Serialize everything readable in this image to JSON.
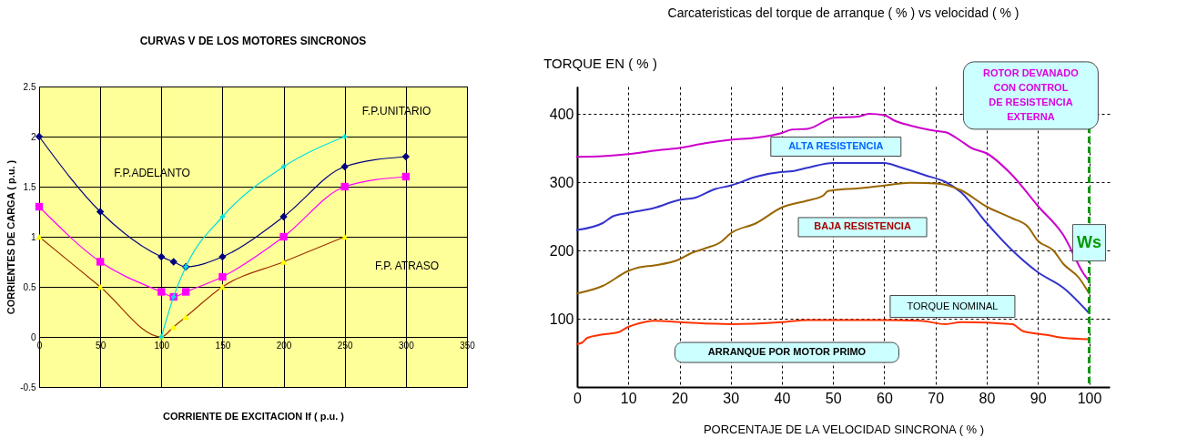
{
  "chart_data": [
    {
      "type": "line",
      "title": "CURVAS V DE LOS MOTORES SINCRONOS",
      "xlabel": "CORRIENTE  DE EXCITACION   If  (  p.u.  )",
      "ylabel": "CORRIENTES  DE CARGA   (  p.u.  )",
      "x": [
        0,
        50,
        100,
        110,
        120,
        150,
        200,
        250,
        300
      ],
      "series": [
        {
          "color": "#000080",
          "marker": "diamond",
          "values": [
            2,
            1.25,
            0.8,
            0.75,
            0.7,
            0.8,
            1.2,
            1.7,
            1.8
          ]
        },
        {
          "color": "#ff00ff",
          "marker": "square",
          "values": [
            1.3,
            0.75,
            0.45,
            0.4,
            0.45,
            0.6,
            1.0,
            1.5,
            1.6
          ]
        },
        {
          "color": "#993300",
          "marker": "none",
          "x": [
            0,
            50,
            100,
            110,
            120,
            150,
            200,
            250
          ],
          "values": [
            1,
            0.5,
            0,
            0.1,
            0.2,
            0.5,
            0.75,
            1.0
          ]
        },
        {
          "type": "scatter",
          "color": "#ffff00",
          "marker": "triangle",
          "x": [
            0,
            50,
            100,
            110,
            120,
            150,
            200,
            250
          ],
          "values": [
            1,
            0.5,
            0,
            0.1,
            0.2,
            0.5,
            0.75,
            1.0
          ]
        },
        {
          "color": "#00e0e0",
          "marker": "cross",
          "x": [
            100,
            110,
            120,
            150,
            200,
            250
          ],
          "values": [
            0,
            0.4,
            0.7,
            1.2,
            1.7,
            2.0
          ]
        }
      ],
      "xlim": [
        0,
        350
      ],
      "xticks": [
        0,
        50,
        100,
        150,
        200,
        250,
        300,
        350
      ],
      "ylim": [
        -0.5,
        2.5
      ],
      "yticks": [
        -0.5,
        0,
        0.5,
        1,
        1.5,
        2,
        2.5
      ],
      "grid": true,
      "annotations": [
        "F.P.ADELANTO",
        "F.P.UNITARIO",
        "F.P. ATRASO"
      ]
    },
    {
      "type": "line",
      "title": "Carcateristicas  del torque de arranque ( % )  vs  velocidad ( % )",
      "xlabel": "PORCENTAJE  DE  LA  VELOCIDAD  SINCRONA  ( % )",
      "ylabel": "TORQUE  EN  ( % )",
      "series": [
        {
          "color": "#cc00cc",
          "x": [
            0,
            5,
            10,
            15,
            20,
            25,
            30,
            35,
            40,
            42,
            45,
            50,
            55,
            57,
            60,
            62,
            65,
            70,
            72,
            75,
            77,
            80,
            85,
            90,
            95,
            99,
            100
          ],
          "values": [
            337,
            338,
            341,
            346,
            350,
            357,
            362,
            365,
            372,
            377,
            378,
            394,
            396,
            400,
            398,
            390,
            383,
            375,
            373,
            360,
            350,
            342,
            310,
            265,
            222,
            165,
            155
          ]
        },
        {
          "color": "#3333cc",
          "x": [
            0,
            5,
            7,
            10,
            15,
            20,
            23,
            27,
            30,
            35,
            40,
            42,
            45,
            50,
            55,
            60,
            63,
            68,
            72,
            75,
            80,
            85,
            90,
            95,
            100
          ],
          "values": [
            230,
            240,
            250,
            255,
            262,
            274,
            277,
            290,
            295,
            308,
            315,
            316,
            321,
            328,
            328,
            328,
            322,
            310,
            300,
            285,
            240,
            200,
            168,
            145,
            108
          ]
        },
        {
          "color": "#996600",
          "x": [
            0,
            5,
            10,
            12,
            15,
            20,
            22,
            25,
            28,
            30,
            35,
            40,
            45,
            48,
            49,
            50,
            55,
            60,
            65,
            70,
            72,
            75,
            80,
            85,
            88,
            90,
            93,
            95,
            98,
            100
          ],
          "values": [
            137,
            148,
            170,
            175,
            178,
            187,
            195,
            203,
            212,
            225,
            240,
            263,
            273,
            280,
            287,
            288,
            291,
            295,
            299,
            298,
            296,
            288,
            264,
            247,
            235,
            214,
            200,
            180,
            160,
            137
          ]
        },
        {
          "color": "#ff3300",
          "x": [
            0,
            1,
            2,
            5,
            8,
            10,
            12,
            15,
            20,
            30,
            40,
            45,
            60,
            67,
            72,
            75,
            85,
            87,
            92,
            95,
            100
          ],
          "values": [
            63,
            65,
            72,
            77,
            80,
            88,
            93,
            97,
            95,
            92,
            95,
            98,
            98,
            97,
            92,
            95,
            92,
            82,
            76,
            72,
            70
          ]
        }
      ],
      "marker": "none",
      "xlim": [
        0,
        104
      ],
      "xticks": [
        0,
        10,
        20,
        30,
        40,
        50,
        60,
        70,
        80,
        90,
        100
      ],
      "ylim": [
        0,
        440
      ],
      "yticks": [
        100,
        200,
        300,
        400
      ],
      "grid": true,
      "ref_lines": [
        {
          "axis": "x",
          "value": 100,
          "label": "Ws",
          "color": "#009900",
          "line_style": "dashed"
        }
      ],
      "annotations": [
        "ALTA RESISTENCIA",
        "BAJA RESISTENCIA",
        "TORQUE NOMINAL",
        "ARRANQUE  POR  MOTOR PRIMO",
        "ROTOR DEVANADO\nCON CONTROL\nDE RESISTENCIA\nEXTERNA"
      ]
    }
  ]
}
